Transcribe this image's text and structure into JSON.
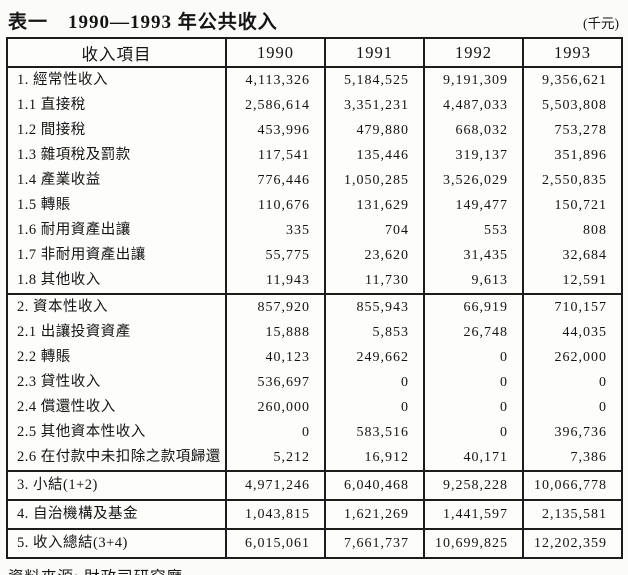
{
  "title": {
    "label": "表一　1990—1993 年公共收入",
    "unit": "(千元)"
  },
  "table": {
    "header": [
      "收入項目",
      "1990",
      "1991",
      "1992",
      "1993"
    ],
    "rows": [
      {
        "label": "1. 經常性收入",
        "values": [
          "4,113,326",
          "5,184,525",
          "9,191,309",
          "9,356,621"
        ],
        "rule_above": false,
        "tall": false
      },
      {
        "label": "1.1 直接稅",
        "values": [
          "2,586,614",
          "3,351,231",
          "4,487,033",
          "5,503,808"
        ],
        "rule_above": false,
        "tall": false
      },
      {
        "label": "1.2 間接稅",
        "values": [
          "453,996",
          "479,880",
          "668,032",
          "753,278"
        ],
        "rule_above": false,
        "tall": false
      },
      {
        "label": "1.3 雜項稅及罰款",
        "values": [
          "117,541",
          "135,446",
          "319,137",
          "351,896"
        ],
        "rule_above": false,
        "tall": false
      },
      {
        "label": "1.4 產業收益",
        "values": [
          "776,446",
          "1,050,285",
          "3,526,029",
          "2,550,835"
        ],
        "rule_above": false,
        "tall": false
      },
      {
        "label": "1.5 轉賬",
        "values": [
          "110,676",
          "131,629",
          "149,477",
          "150,721"
        ],
        "rule_above": false,
        "tall": false
      },
      {
        "label": "1.6 耐用資產出讓",
        "values": [
          "335",
          "704",
          "553",
          "808"
        ],
        "rule_above": false,
        "tall": false
      },
      {
        "label": "1.7 非耐用資產出讓",
        "values": [
          "55,775",
          "23,620",
          "31,435",
          "32,684"
        ],
        "rule_above": false,
        "tall": false
      },
      {
        "label": "1.8 其他收入",
        "values": [
          "11,943",
          "11,730",
          "9,613",
          "12,591"
        ],
        "rule_above": false,
        "tall": false
      },
      {
        "label": "2. 資本性收入",
        "values": [
          "857,920",
          "855,943",
          "66,919",
          "710,157"
        ],
        "rule_above": true,
        "tall": false
      },
      {
        "label": "2.1 出讓投資資產",
        "values": [
          "15,888",
          "5,853",
          "26,748",
          "44,035"
        ],
        "rule_above": false,
        "tall": false
      },
      {
        "label": "2.2 轉賬",
        "values": [
          "40,123",
          "249,662",
          "0",
          "262,000"
        ],
        "rule_above": false,
        "tall": false
      },
      {
        "label": "2.3 貸性收入",
        "values": [
          "536,697",
          "0",
          "0",
          "0"
        ],
        "rule_above": false,
        "tall": false
      },
      {
        "label": "2.4 償還性收入",
        "values": [
          "260,000",
          "0",
          "0",
          "0"
        ],
        "rule_above": false,
        "tall": false
      },
      {
        "label": "2.5 其他資本性收入",
        "values": [
          "0",
          "583,516",
          "0",
          "396,736"
        ],
        "rule_above": false,
        "tall": false
      },
      {
        "label": "2.6 在付款中未扣除之款項歸還",
        "values": [
          "5,212",
          "16,912",
          "40,171",
          "7,386"
        ],
        "rule_above": false,
        "tall": false
      },
      {
        "label": "3. 小結(1+2)",
        "values": [
          "4,971,246",
          "6,040,468",
          "9,258,228",
          "10,066,778"
        ],
        "rule_above": true,
        "tall": true
      },
      {
        "label": "4. 自治機構及基金",
        "values": [
          "1,043,815",
          "1,621,269",
          "1,441,597",
          "2,135,581"
        ],
        "rule_above": true,
        "tall": true
      },
      {
        "label": "5. 收入總結(3+4)",
        "values": [
          "6,015,061",
          "7,661,737",
          "10,699,825",
          "12,202,359"
        ],
        "rule_above": true,
        "tall": true
      }
    ]
  },
  "footer": {
    "source": "資料來源: 財政司研究廳。"
  }
}
